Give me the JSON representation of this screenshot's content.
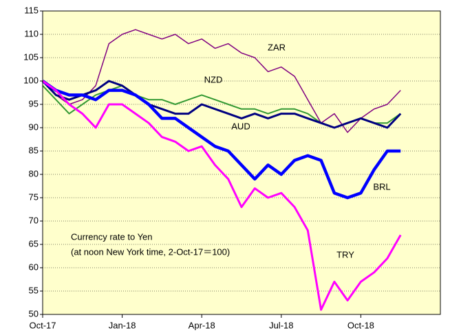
{
  "chart_data": {
    "type": "line",
    "annotations": [
      "Currency rate to Yen",
      "(at noon New York time, 2-Oct-17＝100)"
    ],
    "x": [
      0,
      0.5,
      1,
      1.5,
      2,
      2.5,
      3,
      3.5,
      4,
      4.5,
      5,
      5.5,
      6,
      6.5,
      7,
      7.5,
      8,
      8.5,
      9,
      9.5,
      10,
      10.5,
      11,
      11.5,
      12,
      12.5,
      13,
      13.5
    ],
    "xlim": [
      0,
      15
    ],
    "xticks": [
      {
        "value": 0,
        "label": "Oct-17"
      },
      {
        "value": 3,
        "label": "Jan-18"
      },
      {
        "value": 6,
        "label": "Apr-18"
      },
      {
        "value": 9,
        "label": "Jul-18"
      },
      {
        "value": 12,
        "label": "Oct-18"
      }
    ],
    "ylim": [
      50,
      115
    ],
    "yticks": [
      50,
      55,
      60,
      65,
      70,
      75,
      80,
      85,
      90,
      95,
      100,
      105,
      110,
      115
    ],
    "grid": true,
    "series": [
      {
        "name": "ZAR",
        "color": "#800080",
        "values": [
          100,
          97,
          95,
          96,
          99,
          108,
          110,
          111,
          110,
          109,
          110,
          108,
          109,
          107,
          108,
          106,
          105,
          102,
          103,
          101,
          96,
          91,
          93,
          89,
          92,
          94,
          95,
          98
        ]
      },
      {
        "name": "NZD",
        "color": "#339933",
        "values": [
          99,
          96,
          93,
          95,
          97,
          98,
          99,
          97,
          96,
          96,
          95,
          96,
          97,
          96,
          95,
          94,
          94,
          93,
          94,
          94,
          93,
          91,
          90,
          91,
          92,
          91,
          91,
          93
        ]
      },
      {
        "name": "AUD",
        "color": "#000080",
        "values": [
          100,
          97,
          96,
          97,
          98,
          100,
          99,
          97,
          95,
          94,
          93,
          93,
          95,
          94,
          93,
          92,
          93,
          92,
          93,
          93,
          92,
          91,
          90,
          91,
          92,
          91,
          90,
          93
        ]
      },
      {
        "name": "BRL",
        "color": "#0000ff",
        "values": [
          100,
          98,
          97,
          97,
          96,
          98,
          98,
          97,
          95,
          92,
          92,
          90,
          88,
          86,
          85,
          82,
          79,
          82,
          80,
          83,
          84,
          83,
          76,
          75,
          76,
          81,
          85,
          85
        ]
      },
      {
        "name": "TRY",
        "color": "#ff00ff",
        "values": [
          100,
          98,
          95,
          93,
          90,
          95,
          95,
          93,
          91,
          88,
          87,
          85,
          86,
          82,
          79,
          73,
          77,
          75,
          76,
          73,
          68,
          51,
          57,
          53,
          57,
          59,
          62,
          67
        ]
      }
    ]
  }
}
